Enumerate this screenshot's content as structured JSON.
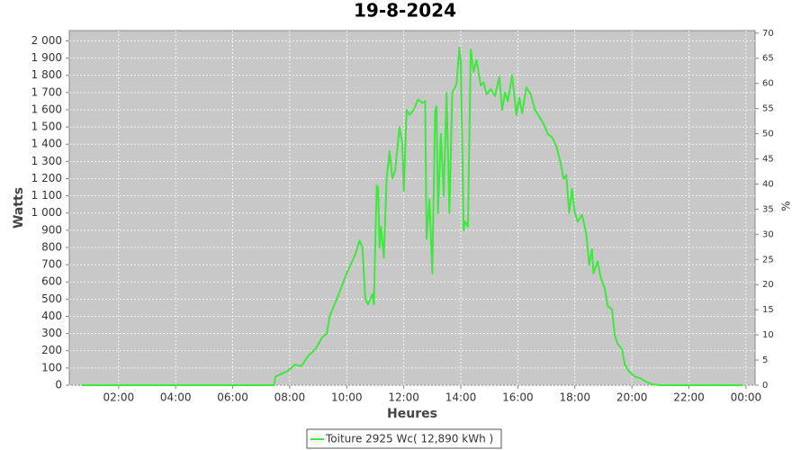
{
  "chart_data": {
    "type": "line",
    "title": "19-8-2024",
    "x_label": "Heures",
    "y_label": "Watts",
    "y2_label": "%",
    "x": [
      0.7,
      7.45,
      7.5,
      7.9,
      8.2,
      8.4,
      8.65,
      8.9,
      9.15,
      9.3,
      9.4,
      9.7,
      10.0,
      10.3,
      10.45,
      10.55,
      10.65,
      10.75,
      10.9,
      10.95,
      11.05,
      11.1,
      11.15,
      11.2,
      11.3,
      11.4,
      11.5,
      11.6,
      11.7,
      11.85,
      11.95,
      12.0,
      12.1,
      12.2,
      12.35,
      12.5,
      12.65,
      12.75,
      12.8,
      12.9,
      13.0,
      13.1,
      13.15,
      13.2,
      13.3,
      13.4,
      13.5,
      13.6,
      13.7,
      13.85,
      13.95,
      14.0,
      14.1,
      14.15,
      14.25,
      14.35,
      14.45,
      14.55,
      14.7,
      14.8,
      14.9,
      15.05,
      15.2,
      15.35,
      15.45,
      15.55,
      15.65,
      15.8,
      15.95,
      16.05,
      16.15,
      16.3,
      16.45,
      16.6,
      16.75,
      16.9,
      17.05,
      17.2,
      17.35,
      17.5,
      17.6,
      17.7,
      17.8,
      17.9,
      18.0,
      18.1,
      18.25,
      18.4,
      18.5,
      18.6,
      18.65,
      18.8,
      18.9,
      19.05,
      19.15,
      19.3,
      19.4,
      19.5,
      19.65,
      19.75,
      19.9,
      20.1,
      20.3,
      20.5,
      20.7,
      21.0,
      23.9
    ],
    "series": [
      {
        "name": "Toiture 2925 Wc( 12,890 kWh )",
        "color": "#3ee83e",
        "values": [
          0,
          0,
          50,
          80,
          120,
          110,
          170,
          210,
          280,
          300,
          400,
          520,
          650,
          760,
          840,
          800,
          500,
          470,
          530,
          470,
          1160,
          1150,
          800,
          920,
          740,
          1200,
          1360,
          1200,
          1250,
          1500,
          1400,
          1130,
          1600,
          1570,
          1600,
          1660,
          1640,
          1650,
          850,
          1080,
          650,
          1600,
          1620,
          1000,
          1460,
          1100,
          1700,
          1000,
          1700,
          1750,
          1960,
          1870,
          900,
          950,
          920,
          1950,
          1820,
          1890,
          1740,
          1760,
          1690,
          1720,
          1680,
          1790,
          1600,
          1700,
          1650,
          1800,
          1570,
          1670,
          1580,
          1730,
          1690,
          1600,
          1560,
          1520,
          1460,
          1440,
          1390,
          1290,
          1200,
          1220,
          1000,
          1140,
          1000,
          950,
          990,
          880,
          700,
          790,
          650,
          720,
          630,
          560,
          460,
          440,
          290,
          240,
          210,
          120,
          80,
          50,
          40,
          20,
          5,
          0,
          0
        ]
      }
    ],
    "xlim": [
      0.27,
      24.32
    ],
    "xticks": [
      {
        "value": 2,
        "label": "02:00"
      },
      {
        "value": 4,
        "label": "04:00"
      },
      {
        "value": 6,
        "label": "06:00"
      },
      {
        "value": 8,
        "label": "08:00"
      },
      {
        "value": 10,
        "label": "10:00"
      },
      {
        "value": 12,
        "label": "12:00"
      },
      {
        "value": 14,
        "label": "14:00"
      },
      {
        "value": 16,
        "label": "16:00"
      },
      {
        "value": 18,
        "label": "18:00"
      },
      {
        "value": 20,
        "label": "20:00"
      },
      {
        "value": 22,
        "label": "22:00"
      },
      {
        "value": 24,
        "label": "00:00"
      }
    ],
    "ylim": [
      0,
      2060
    ],
    "yticks": [
      0,
      100,
      200,
      300,
      400,
      500,
      600,
      700,
      800,
      900,
      {
        "value": 1000,
        "label": "1 000"
      },
      {
        "value": 1100,
        "label": "1 100"
      },
      {
        "value": 1200,
        "label": "1 200"
      },
      {
        "value": 1300,
        "label": "1 300"
      },
      {
        "value": 1400,
        "label": "1 400"
      },
      {
        "value": 1500,
        "label": "1 500"
      },
      {
        "value": 1600,
        "label": "1 600"
      },
      {
        "value": 1700,
        "label": "1 700"
      },
      {
        "value": 1800,
        "label": "1 800"
      },
      {
        "value": 1900,
        "label": "1 900"
      },
      {
        "value": 2000,
        "label": "2 000"
      }
    ],
    "y2lim": [
      0,
      70.5
    ],
    "y2ticks": [
      0,
      5,
      10,
      15,
      20,
      25,
      30,
      35,
      40,
      45,
      50,
      55,
      60,
      65,
      70
    ],
    "grid": true
  }
}
